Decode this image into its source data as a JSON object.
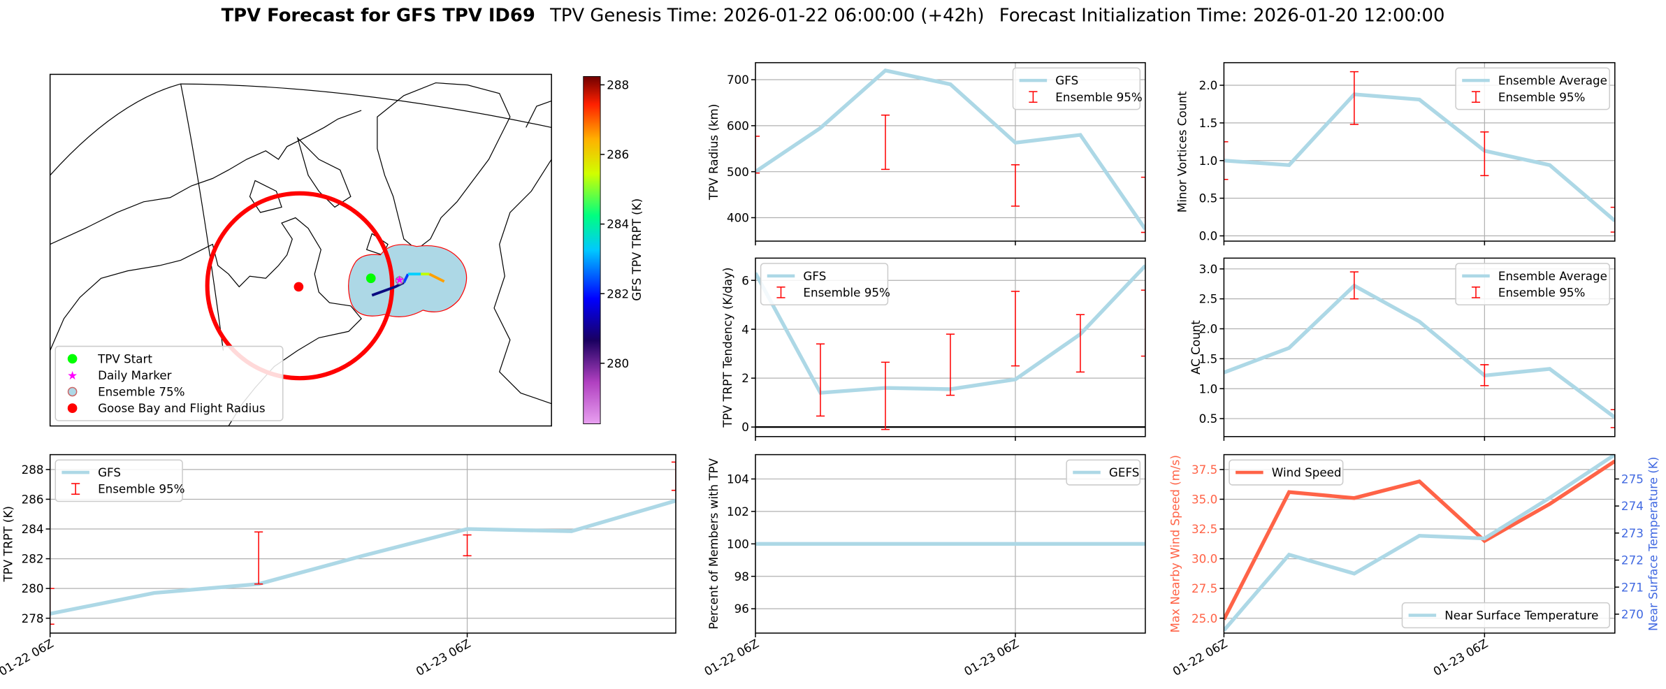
{
  "suptitle": {
    "bold": "TPV Forecast for GFS TPV ID69",
    "genesis": "TPV Genesis Time: 2026-01-22 06:00:00 (+42h)",
    "init": "Forecast Initialization Time: 2026-01-20 12:00:00"
  },
  "chart_data": [
    {
      "type": "map",
      "legend": "lower left",
      "legend_items": [
        {
          "name": "TPV Start",
          "color": "#00ff00",
          "marker": "circle"
        },
        {
          "name": "Daily Marker",
          "color": "#ff00ff",
          "marker": "star"
        },
        {
          "name": "Ensemble 75%",
          "color": "#add8e6",
          "marker": "ring"
        },
        {
          "name": "Goose Bay and Flight Radius",
          "color": "#ff0000",
          "marker": "circle"
        }
      ],
      "colorbar": {
        "label": "GFS TPV TRPT (K)",
        "lim": [
          278.26,
          288.24
        ],
        "ticks": [
          280,
          282,
          284,
          286,
          288
        ]
      }
    },
    {
      "type": "line",
      "ylabel": "TPV Radius (km)",
      "categories": [
        null,
        null,
        null,
        null,
        null,
        null,
        null
      ],
      "xticks": [
        0,
        4
      ],
      "ylim": [
        349,
        737
      ],
      "yticks": [
        400,
        500,
        600,
        700
      ],
      "grid": true,
      "legend": "upper right",
      "series": [
        {
          "name": "GFS",
          "color": "#add8e6",
          "values": [
            500,
            595,
            720,
            690,
            563,
            580,
            375
          ]
        }
      ],
      "errorbars": {
        "name": "Ensemble 95%",
        "color": "#ff0000",
        "lower": [
          497,
          null,
          505,
          null,
          425,
          null,
          368
        ],
        "upper": [
          577,
          null,
          623,
          null,
          515,
          null,
          488
        ]
      }
    },
    {
      "type": "line",
      "ylabel": "Minor Vortices Count",
      "categories": [
        null,
        null,
        null,
        null,
        null,
        null,
        null
      ],
      "xticks": [
        0,
        4
      ],
      "ylim": [
        -0.07,
        2.3
      ],
      "yticks": [
        {
          "value": 0,
          "label": "0.0"
        },
        0.5,
        {
          "value": 1,
          "label": "1.0"
        },
        1.5,
        {
          "value": 2,
          "label": "2.0"
        }
      ],
      "grid": true,
      "legend": "upper right",
      "series": [
        {
          "name": "Ensemble Average",
          "color": "#add8e6",
          "values": [
            1.0,
            0.94,
            1.88,
            1.81,
            1.13,
            0.94,
            0.2
          ]
        }
      ],
      "errorbars": {
        "name": "Ensemble 95%",
        "color": "#ff0000",
        "lower": [
          0.75,
          null,
          1.48,
          null,
          0.8,
          null,
          0.05
        ],
        "upper": [
          1.25,
          null,
          2.18,
          null,
          1.38,
          null,
          0.38
        ]
      }
    },
    {
      "type": "line",
      "ylabel": "TPV TRPT Tendency (K/day)",
      "categories": [
        null,
        null,
        null,
        null,
        null,
        null,
        null
      ],
      "xticks": [
        0,
        4
      ],
      "ylim": [
        -0.39,
        6.91
      ],
      "yticks": [
        0,
        2,
        4,
        6
      ],
      "grid": true,
      "legend": "upper left",
      "hline": 0,
      "series": [
        {
          "name": "GFS",
          "color": "#add8e6",
          "values": [
            6.3,
            1.4,
            1.6,
            1.55,
            1.95,
            3.8,
            6.6
          ]
        }
      ],
      "errorbars": {
        "name": "Ensemble 95%",
        "color": "#ff0000",
        "lower": [
          null,
          0.45,
          -0.1,
          1.3,
          2.5,
          2.25,
          2.9
        ],
        "upper": [
          null,
          3.4,
          2.65,
          3.8,
          5.55,
          4.6,
          5.6
        ]
      }
    },
    {
      "type": "line",
      "ylabel": "AC Count",
      "categories": [
        null,
        null,
        null,
        null,
        null,
        null,
        null
      ],
      "xticks": [
        0,
        4
      ],
      "ylim": [
        0.2,
        3.18
      ],
      "yticks": [
        0.5,
        {
          "value": 1,
          "label": "1.0"
        },
        1.5,
        {
          "value": 2,
          "label": "2.0"
        },
        2.5,
        {
          "value": 3,
          "label": "3.0"
        }
      ],
      "grid": true,
      "legend": "upper right",
      "series": [
        {
          "name": "Ensemble Average",
          "color": "#add8e6",
          "values": [
            1.27,
            1.68,
            2.72,
            2.12,
            1.22,
            1.33,
            0.52
          ]
        }
      ],
      "errorbars": {
        "name": "Ensemble 95%",
        "color": "#ff0000",
        "lower": [
          null,
          null,
          2.5,
          null,
          1.05,
          null,
          0.35
        ],
        "upper": [
          null,
          null,
          2.95,
          null,
          1.4,
          null,
          0.65
        ]
      }
    },
    {
      "type": "line",
      "ylabel": "TPV TRPT (K)",
      "categories": [
        "01-22 06Z",
        null,
        null,
        null,
        "01-23 06Z",
        null,
        null
      ],
      "xticks": [
        0,
        4
      ],
      "ylim": [
        277,
        289
      ],
      "yticks": [
        278,
        280,
        282,
        284,
        286,
        288
      ],
      "grid": true,
      "legend": "upper left",
      "series": [
        {
          "name": "GFS",
          "color": "#add8e6",
          "values": [
            278.3,
            279.7,
            280.3,
            282.2,
            284.0,
            283.85,
            285.9
          ]
        }
      ],
      "errorbars": {
        "name": "Ensemble 95%",
        "color": "#ff0000",
        "lower": [
          277.6,
          null,
          280.3,
          null,
          282.2,
          null,
          286.6
        ],
        "upper": [
          280.0,
          null,
          283.8,
          null,
          283.6,
          null,
          288.5
        ]
      }
    },
    {
      "type": "line",
      "ylabel": "Percent of Members with TPV",
      "categories": [
        "01-22 06Z",
        null,
        null,
        null,
        "01-23 06Z",
        null,
        null
      ],
      "xticks": [
        0,
        4
      ],
      "ylim": [
        94.5,
        105.5
      ],
      "yticks": [
        96,
        98,
        100,
        102,
        104
      ],
      "grid": true,
      "legend": "upper right",
      "series": [
        {
          "name": "GEFS",
          "color": "#add8e6",
          "values": [
            100,
            100,
            100,
            100,
            100,
            100,
            100
          ]
        }
      ]
    },
    {
      "type": "line",
      "ylabel": "Max Nearby Wind Speed (m/s)",
      "ylabel_color": "#ff6347",
      "y2label": "Near Surface Temperature (K)",
      "y2label_color": "#4169e1",
      "categories": [
        "01-22 06Z",
        null,
        null,
        null,
        "01-23 06Z",
        null,
        null
      ],
      "xticks": [
        0,
        4
      ],
      "ylim": [
        23.75,
        38.75
      ],
      "yticks": [
        {
          "value": 25,
          "label": "25.0"
        },
        27.5,
        {
          "value": 30,
          "label": "30.0"
        },
        32.5,
        {
          "value": 35,
          "label": "35.0"
        },
        37.5
      ],
      "y2lim": [
        269.3,
        275.9
      ],
      "y2ticks": [
        270,
        271,
        272,
        273,
        274,
        275
      ],
      "grid": true,
      "series": [
        {
          "name": "Wind Speed",
          "color": "#ff6347",
          "legend": "upper left",
          "values": [
            24.9,
            35.6,
            35.1,
            36.5,
            31.5,
            34.6,
            38.2
          ]
        },
        {
          "name": "Near Surface Temperature",
          "color": "#add8e6",
          "axis": "y2",
          "legend": "lower right",
          "values": [
            269.4,
            272.2,
            271.5,
            272.9,
            272.8,
            274.3,
            275.9
          ]
        }
      ]
    }
  ]
}
